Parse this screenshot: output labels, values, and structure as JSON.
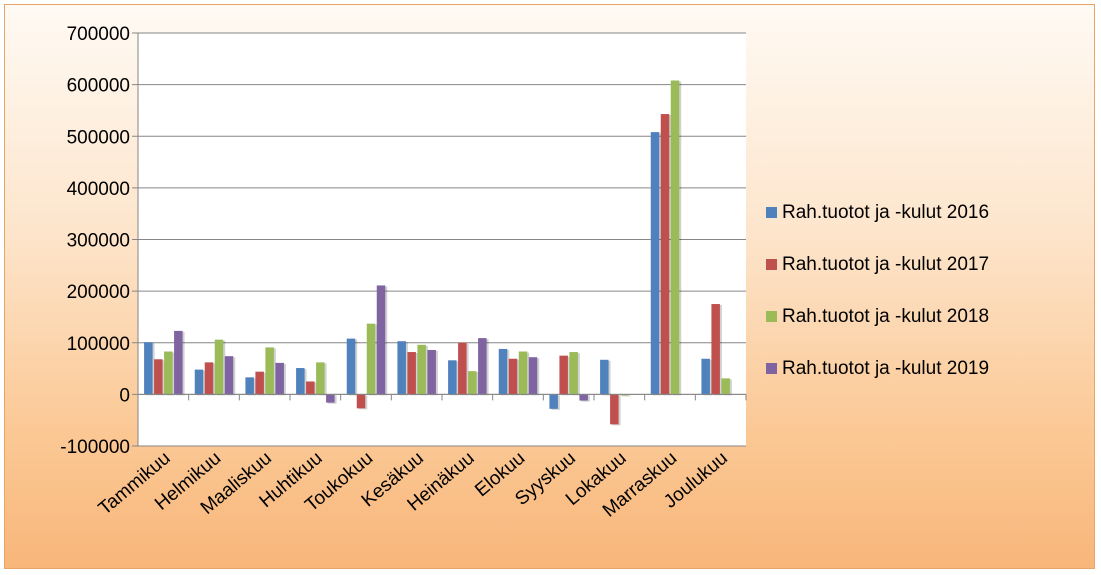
{
  "chart_data": {
    "type": "bar",
    "title": "",
    "xlabel": "",
    "ylabel": "",
    "ylim": [
      -100000,
      700000
    ],
    "yticks": [
      -100000,
      0,
      100000,
      200000,
      300000,
      400000,
      500000,
      600000,
      700000
    ],
    "grid": true,
    "legend_position": "right",
    "categories": [
      "Tammikuu",
      "Helmikuu",
      "Maaliskuu",
      "Huhtikuu",
      "Toukokuu",
      "Kesäkuu",
      "Heinäkuu",
      "Elokuu",
      "Syyskuu",
      "Lokakuu",
      "Marraskuu",
      "Joulukuu"
    ],
    "series": [
      {
        "name": "Rah.tuotot ja -kulut 2016",
        "color": "#4f81bd",
        "values": [
          101000,
          48000,
          33000,
          51000,
          108000,
          103000,
          66000,
          88000,
          -28000,
          67000,
          508000,
          69000
        ]
      },
      {
        "name": "Rah.tuotot ja -kulut 2017",
        "color": "#c0504d",
        "values": [
          68000,
          62000,
          44000,
          25000,
          -27000,
          82000,
          100000,
          69000,
          75000,
          -58000,
          543000,
          175000
        ]
      },
      {
        "name": "Rah.tuotot ja -kulut 2018",
        "color": "#9bbb59",
        "values": [
          83000,
          106000,
          91000,
          62000,
          137000,
          96000,
          45000,
          83000,
          82000,
          -2000,
          608000,
          31000
        ]
      },
      {
        "name": "Rah.tuotot ja -kulut 2019",
        "color": "#8064a2",
        "values": [
          123000,
          74000,
          61000,
          -16000,
          211000,
          86000,
          109000,
          72000,
          -12000,
          0,
          0,
          0
        ]
      }
    ]
  }
}
